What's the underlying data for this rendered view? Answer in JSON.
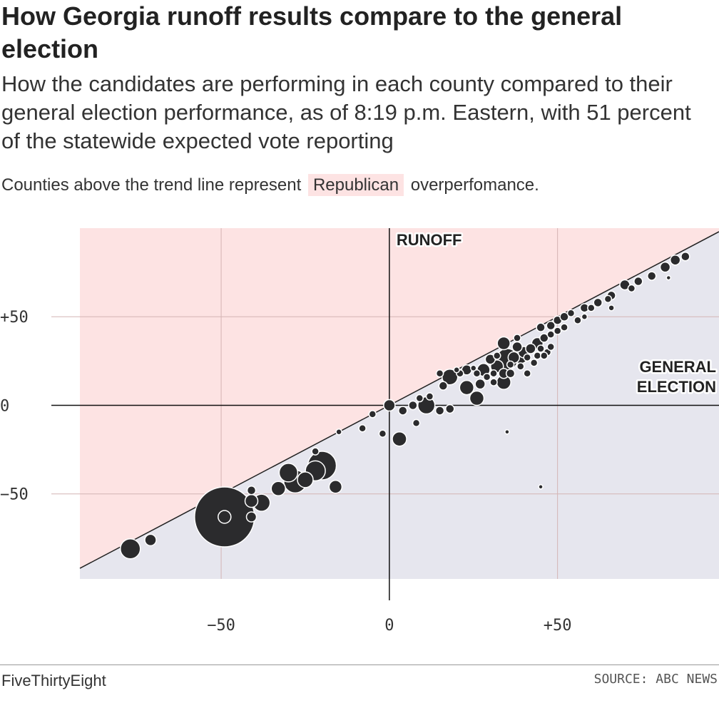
{
  "title": "How Georgia runoff results compare to the general election",
  "subtitle": "How the candidates are performing in each county compared to their general election performance, as of 8:19 p.m. Eastern, with 51 percent of the statewide expected vote reporting",
  "note": {
    "before": "Counties above the trend line represent",
    "highlight": "Republican",
    "after": "overperfomance."
  },
  "footer": {
    "brand": "FiveThirtyEight",
    "source": "SOURCE: ABC NEWS"
  },
  "colors": {
    "republican_bg": "#fde3e3",
    "democratic_bg": "#e6e6ee",
    "gridline": "#d4b4b4",
    "dot_fill": "#2b2b2d",
    "dot_stroke": "#ffffff"
  },
  "chart_data": {
    "type": "scatter",
    "x_axis_label": "GENERAL ELECTION",
    "y_axis_label": "RUNOFF",
    "xlim": [
      -92,
      98
    ],
    "ylim": [
      -98,
      100
    ],
    "x_ticks": [
      {
        "value": -50,
        "label": "−50"
      },
      {
        "value": 0,
        "label": "0"
      },
      {
        "value": 50,
        "label": "+50"
      }
    ],
    "y_ticks": [
      {
        "value": 50,
        "label": "+50"
      },
      {
        "value": 0,
        "label": "0"
      },
      {
        "value": -50,
        "label": "−50"
      }
    ],
    "trend_line": "y = x",
    "grid": true,
    "points": [
      {
        "x": -49,
        "y": -63,
        "r": 42
      },
      {
        "x": -28,
        "y": -43,
        "r": 16
      },
      {
        "x": -30,
        "y": -38,
        "r": 13
      },
      {
        "x": -20,
        "y": -34,
        "r": 20
      },
      {
        "x": -22,
        "y": -37,
        "r": 14
      },
      {
        "x": -25,
        "y": -42,
        "r": 11
      },
      {
        "x": -16,
        "y": -46,
        "r": 9
      },
      {
        "x": -33,
        "y": -47,
        "r": 10
      },
      {
        "x": -38,
        "y": -55,
        "r": 12
      },
      {
        "x": -41,
        "y": -54,
        "r": 9
      },
      {
        "x": -41,
        "y": -63,
        "r": 7
      },
      {
        "x": -49,
        "y": -63,
        "r": 9
      },
      {
        "x": -41,
        "y": -48,
        "r": 6
      },
      {
        "x": -77,
        "y": -81,
        "r": 14
      },
      {
        "x": -71,
        "y": -76,
        "r": 8
      },
      {
        "x": -22,
        "y": -26,
        "r": 5
      },
      {
        "x": -15,
        "y": -15,
        "r": 4
      },
      {
        "x": -8,
        "y": -13,
        "r": 5
      },
      {
        "x": -5,
        "y": -5,
        "r": 5
      },
      {
        "x": -2,
        "y": -16,
        "r": 5
      },
      {
        "x": 0,
        "y": 0,
        "r": 8
      },
      {
        "x": 3,
        "y": -19,
        "r": 10
      },
      {
        "x": 4,
        "y": -3,
        "r": 6
      },
      {
        "x": 7,
        "y": 0,
        "r": 6
      },
      {
        "x": 11,
        "y": 0,
        "r": 12
      },
      {
        "x": 8,
        "y": -10,
        "r": 5
      },
      {
        "x": 15,
        "y": -3,
        "r": 6
      },
      {
        "x": 18,
        "y": -2,
        "r": 6
      },
      {
        "x": 12,
        "y": 5,
        "r": 5
      },
      {
        "x": 9,
        "y": 4,
        "r": 5
      },
      {
        "x": 18,
        "y": 16,
        "r": 11
      },
      {
        "x": 15,
        "y": 18,
        "r": 5
      },
      {
        "x": 16,
        "y": 11,
        "r": 6
      },
      {
        "x": 23,
        "y": 10,
        "r": 10
      },
      {
        "x": 26,
        "y": 4,
        "r": 10
      },
      {
        "x": 27,
        "y": 12,
        "r": 7
      },
      {
        "x": 23,
        "y": 20,
        "r": 7
      },
      {
        "x": 28,
        "y": 20,
        "r": 9
      },
      {
        "x": 30,
        "y": 26,
        "r": 7
      },
      {
        "x": 32,
        "y": 22,
        "r": 9
      },
      {
        "x": 34,
        "y": 35,
        "r": 9
      },
      {
        "x": 35,
        "y": 26,
        "r": 15
      },
      {
        "x": 39,
        "y": 28,
        "r": 11
      },
      {
        "x": 38,
        "y": 33,
        "r": 7
      },
      {
        "x": 34,
        "y": 18,
        "r": 7
      },
      {
        "x": 36,
        "y": 18,
        "r": 6
      },
      {
        "x": 34,
        "y": 13,
        "r": 10
      },
      {
        "x": 37,
        "y": 27,
        "r": 8
      },
      {
        "x": 40,
        "y": 30,
        "r": 8
      },
      {
        "x": 42,
        "y": 32,
        "r": 7
      },
      {
        "x": 44,
        "y": 35,
        "r": 8
      },
      {
        "x": 46,
        "y": 38,
        "r": 6
      },
      {
        "x": 45,
        "y": 44,
        "r": 6
      },
      {
        "x": 48,
        "y": 45,
        "r": 6
      },
      {
        "x": 50,
        "y": 48,
        "r": 6
      },
      {
        "x": 52,
        "y": 50,
        "r": 6
      },
      {
        "x": 54,
        "y": 52,
        "r": 5
      },
      {
        "x": 58,
        "y": 55,
        "r": 6
      },
      {
        "x": 62,
        "y": 58,
        "r": 6
      },
      {
        "x": 66,
        "y": 62,
        "r": 6
      },
      {
        "x": 70,
        "y": 68,
        "r": 7
      },
      {
        "x": 74,
        "y": 70,
        "r": 6
      },
      {
        "x": 78,
        "y": 73,
        "r": 6
      },
      {
        "x": 82,
        "y": 78,
        "r": 7
      },
      {
        "x": 85,
        "y": 82,
        "r": 7
      },
      {
        "x": 88,
        "y": 84,
        "r": 6
      },
      {
        "x": 72,
        "y": 66,
        "r": 5
      },
      {
        "x": 65,
        "y": 60,
        "r": 5
      },
      {
        "x": 60,
        "y": 55,
        "r": 5
      },
      {
        "x": 56,
        "y": 48,
        "r": 5
      },
      {
        "x": 48,
        "y": 40,
        "r": 5
      },
      {
        "x": 50,
        "y": 42,
        "r": 5
      },
      {
        "x": 52,
        "y": 44,
        "r": 5
      },
      {
        "x": 44,
        "y": 28,
        "r": 5
      },
      {
        "x": 47,
        "y": 30,
        "r": 5
      },
      {
        "x": 43,
        "y": 24,
        "r": 5
      },
      {
        "x": 41,
        "y": 18,
        "r": 5
      },
      {
        "x": 39,
        "y": 22,
        "r": 5
      },
      {
        "x": 41,
        "y": 27,
        "r": 5
      },
      {
        "x": 45,
        "y": 32,
        "r": 5
      },
      {
        "x": 31,
        "y": 13,
        "r": 5
      },
      {
        "x": 29,
        "y": 16,
        "r": 5
      },
      {
        "x": 26,
        "y": 18,
        "r": 5
      },
      {
        "x": 21,
        "y": 18,
        "r": 5
      },
      {
        "x": 20,
        "y": 20,
        "r": 4
      },
      {
        "x": 25,
        "y": 21,
        "r": 4
      },
      {
        "x": 31,
        "y": 18,
        "r": 5
      },
      {
        "x": 36,
        "y": 23,
        "r": 5
      },
      {
        "x": 46,
        "y": 28,
        "r": 5
      },
      {
        "x": 48,
        "y": 33,
        "r": 5
      },
      {
        "x": 35,
        "y": -15,
        "r": 3
      },
      {
        "x": 45,
        "y": -46,
        "r": 3
      },
      {
        "x": 83,
        "y": 72,
        "r": 3
      },
      {
        "x": 66,
        "y": 55,
        "r": 4
      },
      {
        "x": 58,
        "y": 50,
        "r": 4
      },
      {
        "x": 38,
        "y": 38,
        "r": 5
      },
      {
        "x": 32,
        "y": 28,
        "r": 5
      }
    ]
  }
}
